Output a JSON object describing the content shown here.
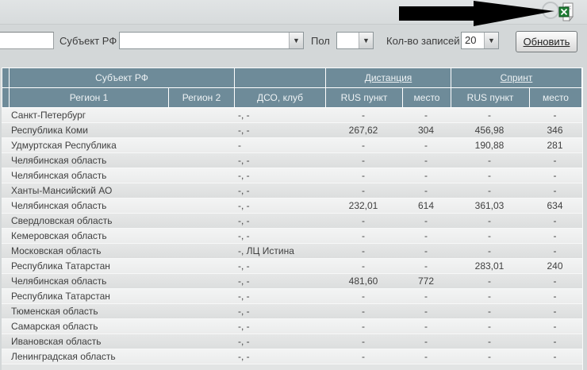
{
  "toolbar": {
    "search_value": "",
    "subject_label": "Субъект РФ",
    "subject_value": "",
    "gender_label": "Пол",
    "gender_value": "",
    "records_label": "Кол-во записей",
    "records_value": "20",
    "refresh_label": "Обновить",
    "dropdown_arrow": "▼"
  },
  "annotation": {
    "arrow_target": "excel-export-icon"
  },
  "table": {
    "group_headers": {
      "subject": "Субъект РФ",
      "distance": "Дистанция",
      "sprint": "Спринт"
    },
    "columns": {
      "region1": "Регион 1",
      "region2": "Регион 2",
      "club": "ДСО, клуб",
      "rus_points": "RUS пункт",
      "place": "место"
    },
    "rows": [
      {
        "region1": "Санкт-Петербург",
        "region2": "",
        "club": "-, -",
        "dist_rus": "-",
        "dist_place": "-",
        "sprint_rus": "-",
        "sprint_place": "-"
      },
      {
        "region1": "Республика Коми",
        "region2": "",
        "club": "-, -",
        "dist_rus": "267,62",
        "dist_place": "304",
        "sprint_rus": "456,98",
        "sprint_place": "346"
      },
      {
        "region1": "Удмуртская Республика",
        "region2": "",
        "club": "-",
        "dist_rus": "-",
        "dist_place": "-",
        "sprint_rus": "190,88",
        "sprint_place": "281"
      },
      {
        "region1": "Челябинская область",
        "region2": "",
        "club": "-, -",
        "dist_rus": "-",
        "dist_place": "-",
        "sprint_rus": "-",
        "sprint_place": "-"
      },
      {
        "region1": "Челябинская область",
        "region2": "",
        "club": "-, -",
        "dist_rus": "-",
        "dist_place": "-",
        "sprint_rus": "-",
        "sprint_place": "-"
      },
      {
        "region1": "Ханты-Мансийский АО",
        "region2": "",
        "club": "-, -",
        "dist_rus": "-",
        "dist_place": "-",
        "sprint_rus": "-",
        "sprint_place": "-"
      },
      {
        "region1": "Челябинская область",
        "region2": "",
        "club": "-, -",
        "dist_rus": "232,01",
        "dist_place": "614",
        "sprint_rus": "361,03",
        "sprint_place": "634"
      },
      {
        "region1": "Свердловская область",
        "region2": "",
        "club": "-, -",
        "dist_rus": "-",
        "dist_place": "-",
        "sprint_rus": "-",
        "sprint_place": "-"
      },
      {
        "region1": "Кемеровская область",
        "region2": "",
        "club": "-, -",
        "dist_rus": "-",
        "dist_place": "-",
        "sprint_rus": "-",
        "sprint_place": "-"
      },
      {
        "region1": "Московская область",
        "region2": "",
        "club": "-, ЛЦ Истина",
        "dist_rus": "-",
        "dist_place": "-",
        "sprint_rus": "-",
        "sprint_place": "-"
      },
      {
        "region1": "Республика Татарстан",
        "region2": "",
        "club": "-, -",
        "dist_rus": "-",
        "dist_place": "-",
        "sprint_rus": "283,01",
        "sprint_place": "240"
      },
      {
        "region1": "Челябинская область",
        "region2": "",
        "club": "-, -",
        "dist_rus": "481,60",
        "dist_place": "772",
        "sprint_rus": "-",
        "sprint_place": "-"
      },
      {
        "region1": "Республика Татарстан",
        "region2": "",
        "club": "-, -",
        "dist_rus": "-",
        "dist_place": "-",
        "sprint_rus": "-",
        "sprint_place": "-"
      },
      {
        "region1": "Тюменская область",
        "region2": "",
        "club": "-, -",
        "dist_rus": "-",
        "dist_place": "-",
        "sprint_rus": "-",
        "sprint_place": "-"
      },
      {
        "region1": "Самарская область",
        "region2": "",
        "club": "-, -",
        "dist_rus": "-",
        "dist_place": "-",
        "sprint_rus": "-",
        "sprint_place": "-"
      },
      {
        "region1": "Ивановская область",
        "region2": "",
        "club": "-, -",
        "dist_rus": "-",
        "dist_place": "-",
        "sprint_rus": "-",
        "sprint_place": "-"
      },
      {
        "region1": "Ленинградская область",
        "region2": "",
        "club": "-, -",
        "dist_rus": "-",
        "dist_place": "-",
        "sprint_rus": "-",
        "sprint_place": "-"
      }
    ]
  },
  "colors": {
    "header_bg": "#6e8b99",
    "page_bg": "#d3d7d8",
    "row_light": "#f0f1f1",
    "row_dark": "#e1e3e3",
    "excel_green": "#1e7e34",
    "annotation_arrow": "#000000"
  }
}
